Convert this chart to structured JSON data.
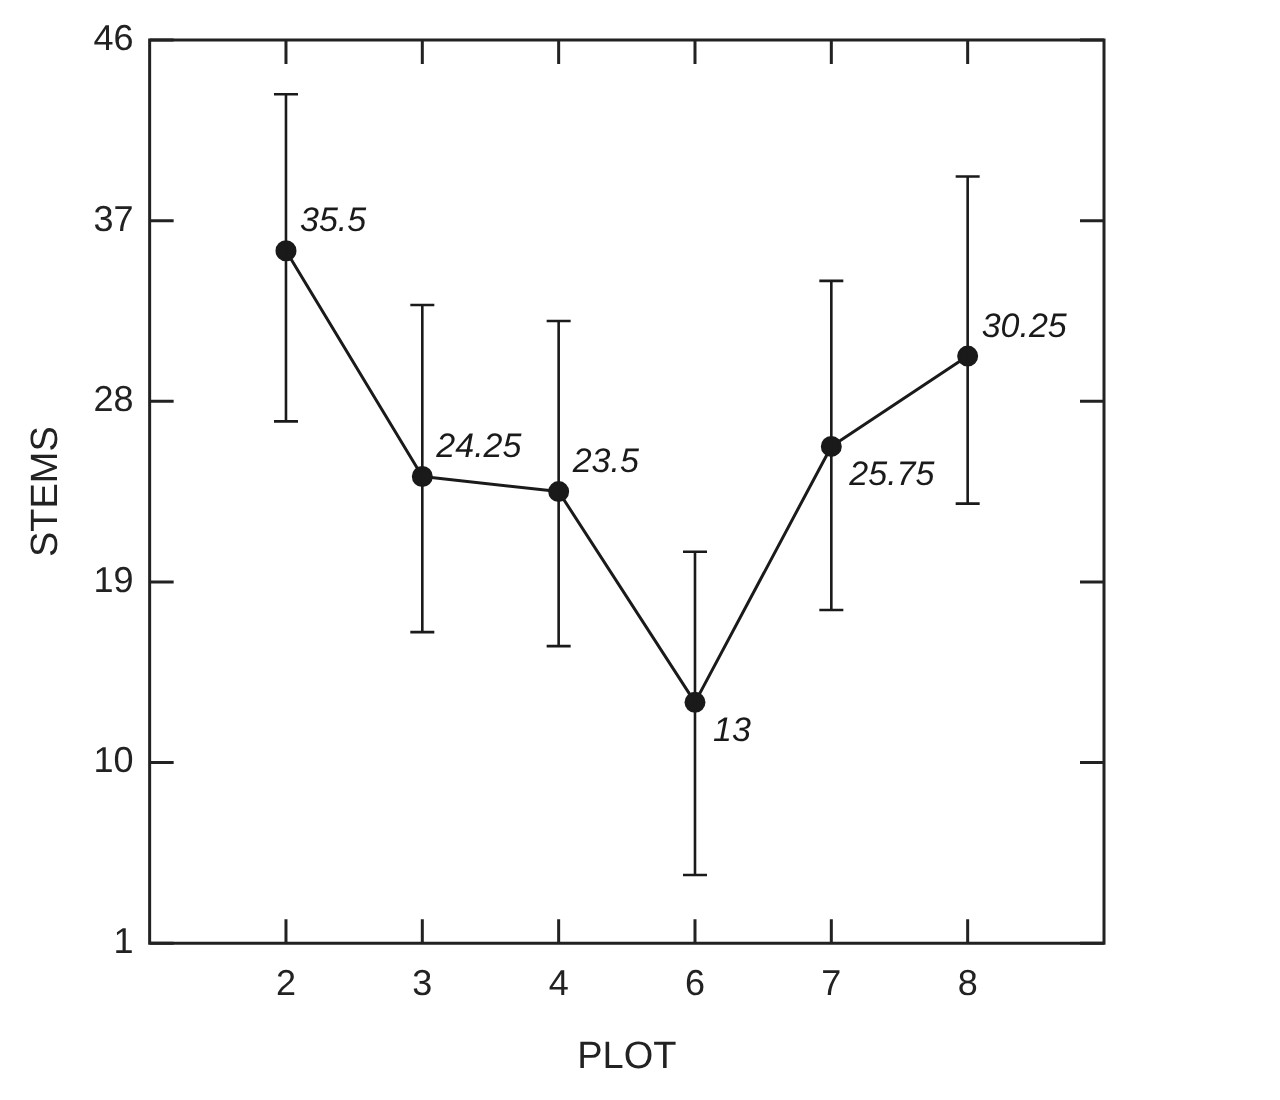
{
  "chart_data": {
    "type": "line",
    "xlabel": "PLOT",
    "ylabel": "STEMS",
    "categories": [
      "2",
      "3",
      "4",
      "6",
      "7",
      "8"
    ],
    "values": [
      35.5,
      24.25,
      23.5,
      13,
      25.75,
      30.25
    ],
    "errors": [
      [
        27.0,
        43.3
      ],
      [
        16.5,
        32.8
      ],
      [
        15.8,
        32.0
      ],
      [
        4.4,
        20.5
      ],
      [
        17.6,
        34.0
      ],
      [
        22.9,
        39.2
      ]
    ],
    "value_labels": [
      "35.5",
      "24.25",
      "23.5",
      "13",
      "25.75",
      "30.25"
    ],
    "color": "#1a1a1a",
    "marker": "circle",
    "ylim": [
      1,
      46
    ],
    "yticks": [
      1,
      10,
      19,
      28,
      37,
      46
    ],
    "grid": false,
    "legend": false
  }
}
